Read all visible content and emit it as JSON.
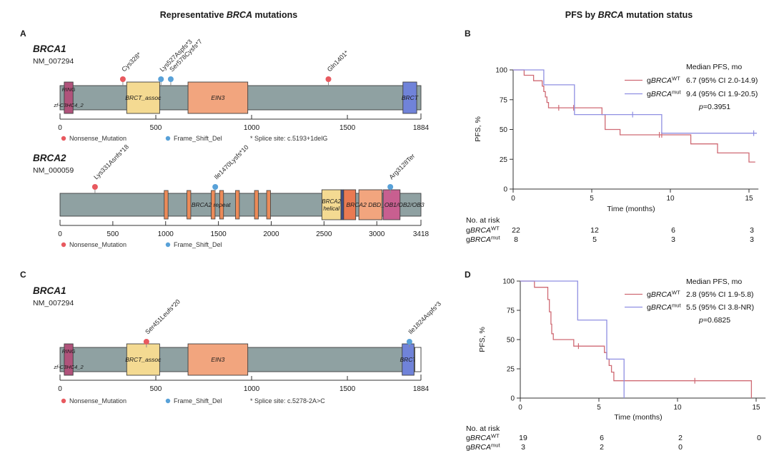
{
  "left_title": {
    "pre": "Representative ",
    "gene": "BRCA",
    "post": " mutations"
  },
  "right_title": {
    "pre": "PFS by ",
    "gene": "BRCA",
    "post": " mutation status"
  },
  "colors": {
    "nonsense": "#e8595f",
    "frameshift": "#58a1d8",
    "bar": "#8fa1a2",
    "bar_border": "#3f3f3f",
    "km_wt": "#cf6a74",
    "km_mut": "#8f8fe2",
    "domain_ring": "#b0537b",
    "domain_yellow": "#f4da92",
    "domain_salmon": "#f2a57e",
    "domain_blue": "#7083d9",
    "domain_repeat": "#ec8b59",
    "domain_navy": "#3d4f8a",
    "domain_coral": "#e97a52",
    "domain_pink": "#c85f90"
  },
  "chart_data": [
    {
      "panel": "A",
      "type": "lollipop",
      "tracks": [
        {
          "gene": "BRCA1",
          "transcript": "NM_007294",
          "axis_max": 1884,
          "axis_ticks": [
            0,
            500,
            1000,
            1500,
            1884
          ],
          "mutations": [
            {
              "label": "Cys328*",
              "pos": 328,
              "type": "nonsense"
            },
            {
              "label": "Lys527Aspfs*3",
              "pos": 527,
              "type": "frameshift"
            },
            {
              "label": "Ser578Cysfs*7",
              "pos": 578,
              "type": "frameshift"
            },
            {
              "label": "Gln1401*",
              "pos": 1401,
              "type": "nonsense"
            }
          ],
          "domains": [
            {
              "label": "RING",
              "label2": "zf-C3HC4_2",
              "start": 22,
              "end": 68,
              "color": "#b0537b"
            },
            {
              "label": "BRCT_assoc",
              "start": 348,
              "end": 520,
              "color": "#f4da92"
            },
            {
              "label": "EIN3",
              "start": 668,
              "end": 980,
              "color": "#f2a57e"
            },
            {
              "label": "BRCT",
              "start": 1790,
              "end": 1862,
              "color": "#7083d9"
            }
          ],
          "legend": [
            {
              "label": "Nonsense_Mutation",
              "type": "nonsense"
            },
            {
              "label": "Frame_Shift_Del",
              "type": "frameshift"
            }
          ],
          "note": "* Splice site: c.5193+1delG"
        },
        {
          "gene": "BRCA2",
          "transcript": "NM_000059",
          "axis_max": 3418,
          "axis_ticks": [
            0,
            500,
            1000,
            1500,
            2000,
            2500,
            3000,
            3418
          ],
          "mutations": [
            {
              "label": "Lys331Asnfs*18",
              "pos": 331,
              "type": "nonsense"
            },
            {
              "label": "Ile1470Lysfs*10",
              "pos": 1470,
              "type": "frameshift"
            },
            {
              "label": "Arg3128Ter",
              "pos": 3128,
              "type": "frameshift"
            }
          ],
          "repeats": [
            1005,
            1220,
            1450,
            1530,
            1680,
            1860,
            1975
          ],
          "repeat_label": "BRCA2 repeat",
          "repeat_label_pos": 1430,
          "span_label": "BRCA2 DBD_OB1/OB2/OB3",
          "span_label_pos": 3080,
          "domains": [
            {
              "label": "BRCA2\nhelical",
              "start": 2480,
              "end": 2660,
              "color": "#f4da92"
            },
            {
              "label": "",
              "start": 2660,
              "end": 2686,
              "color": "#3d4f8a"
            },
            {
              "label": "",
              "start": 2686,
              "end": 2800,
              "color": "#e97a52"
            },
            {
              "label": "",
              "start": 2830,
              "end": 3050,
              "color": "#f2a57e"
            },
            {
              "label": "",
              "start": 3060,
              "end": 3220,
              "color": "#c85f90"
            }
          ],
          "legend": [
            {
              "label": "Nonsense_Mutation",
              "type": "nonsense"
            },
            {
              "label": "Frame_Shift_Del",
              "type": "frameshift"
            }
          ]
        }
      ]
    },
    {
      "panel": "B",
      "type": "km_curve",
      "ylabel": "PFS, %",
      "xlabel": "Time (months)",
      "yticks": [
        0,
        25,
        50,
        75,
        100
      ],
      "xticks": [
        0,
        5,
        10,
        15
      ],
      "legend_title": "Median PFS, mo",
      "p_value": "p=0.3951",
      "series": [
        {
          "prefix": "g",
          "gene": "BRCA",
          "sup": "WT",
          "median": "6.7 (95% CI 2.0-14.9)",
          "color": "#cf6a74",
          "points": [
            [
              0,
              100
            ],
            [
              0.7,
              100
            ],
            [
              0.7,
              95.5
            ],
            [
              1.3,
              95.5
            ],
            [
              1.3,
              90.9
            ],
            [
              1.85,
              90.9
            ],
            [
              1.85,
              86.4
            ],
            [
              1.95,
              86.4
            ],
            [
              1.95,
              81.8
            ],
            [
              2.05,
              81.8
            ],
            [
              2.05,
              77.3
            ],
            [
              2.15,
              77.3
            ],
            [
              2.15,
              72.7
            ],
            [
              2.25,
              72.7
            ],
            [
              2.25,
              68.2
            ],
            [
              5.65,
              68.2
            ],
            [
              5.65,
              62.5
            ],
            [
              5.85,
              62.5
            ],
            [
              5.85,
              50
            ],
            [
              6.8,
              50
            ],
            [
              6.8,
              45.5
            ],
            [
              11.3,
              45.5
            ],
            [
              11.3,
              37.9
            ],
            [
              13,
              37.9
            ],
            [
              13,
              30.3
            ],
            [
              15,
              30.3
            ],
            [
              15,
              22.7
            ],
            [
              15.4,
              22.7
            ]
          ],
          "censors": [
            [
              2.9,
              68.2
            ],
            [
              3.85,
              68.2
            ],
            [
              9.3,
              45.5
            ],
            [
              9.45,
              45.5
            ]
          ]
        },
        {
          "prefix": "g",
          "gene": "BRCA",
          "sup": "mut",
          "median": "9.4 (95% CI 1.9-20.5)",
          "color": "#8f8fe2",
          "points": [
            [
              0,
              100
            ],
            [
              1.95,
              100
            ],
            [
              1.95,
              87.5
            ],
            [
              3.9,
              87.5
            ],
            [
              3.9,
              62.5
            ],
            [
              9.45,
              62.5
            ],
            [
              9.45,
              46.9
            ],
            [
              15.5,
              46.9
            ]
          ],
          "censors": [
            [
              7.6,
              62.5
            ],
            [
              15.3,
              46.9
            ]
          ]
        }
      ],
      "risk_table": {
        "title": "No. at risk",
        "rows": [
          {
            "prefix": "g",
            "gene": "BRCA",
            "sup": "WT",
            "counts": [
              "22",
              "12",
              "6",
              "3"
            ]
          },
          {
            "prefix": "g",
            "gene": "BRCA",
            "sup": "mut",
            "counts": [
              "8",
              "5",
              "3",
              "3"
            ]
          }
        ]
      }
    },
    {
      "panel": "C",
      "type": "lollipop",
      "tracks": [
        {
          "gene": "BRCA1",
          "transcript": "NM_007294",
          "axis_max": 1884,
          "axis_ticks": [
            0,
            500,
            1000,
            1500,
            1884
          ],
          "mutations": [
            {
              "label": "Ser451Leufs*20",
              "pos": 451,
              "type": "nonsense"
            },
            {
              "label": "Ile1824Aspfs*3",
              "pos": 1824,
              "type": "frameshift"
            }
          ],
          "domains": [
            {
              "label": "RING",
              "label2": "zf-C3HC4_2",
              "start": 22,
              "end": 68,
              "color": "#b0537b"
            },
            {
              "label": "BRCT_assoc",
              "start": 348,
              "end": 520,
              "color": "#f4da92"
            },
            {
              "label": "EIN3",
              "start": 668,
              "end": 980,
              "color": "#f2a57e"
            },
            {
              "label": "BRCT",
              "start": 1786,
              "end": 1848,
              "color": "#7083d9"
            }
          ],
          "end_cap": {
            "start": 1852,
            "end": 1884
          },
          "legend": [
            {
              "label": "Nonsense_Mutation",
              "type": "nonsense"
            },
            {
              "label": "Frame_Shift_Del",
              "type": "frameshift"
            }
          ],
          "note": "* Splice site: c.5278-2A>C"
        }
      ]
    },
    {
      "panel": "D",
      "type": "km_curve",
      "ylabel": "PFS, %",
      "xlabel": "Time (months)",
      "yticks": [
        0,
        25,
        50,
        75,
        100
      ],
      "xticks": [
        0,
        5,
        10,
        15
      ],
      "legend_title": "Median PFS, mo",
      "p_value": "p=0.6825",
      "series": [
        {
          "prefix": "g",
          "gene": "BRCA",
          "sup": "WT",
          "median": "2.8 (95% CI 1.9-5.8)",
          "color": "#cf6a74",
          "points": [
            [
              0,
              100
            ],
            [
              0.9,
              100
            ],
            [
              0.9,
              94.7
            ],
            [
              1.75,
              94.7
            ],
            [
              1.75,
              84.2
            ],
            [
              1.85,
              84.2
            ],
            [
              1.85,
              73.7
            ],
            [
              1.95,
              73.7
            ],
            [
              1.95,
              63.2
            ],
            [
              2,
              63.2
            ],
            [
              2,
              55
            ],
            [
              2.1,
              55
            ],
            [
              2.1,
              50
            ],
            [
              3.4,
              50
            ],
            [
              3.4,
              44.4
            ],
            [
              5.35,
              44.4
            ],
            [
              5.35,
              38.9
            ],
            [
              5.5,
              38.9
            ],
            [
              5.5,
              33.3
            ],
            [
              5.65,
              33.3
            ],
            [
              5.65,
              27.8
            ],
            [
              5.8,
              27.8
            ],
            [
              5.8,
              22.2
            ],
            [
              5.95,
              22.2
            ],
            [
              5.95,
              14.8
            ],
            [
              14.7,
              14.8
            ],
            [
              14.7,
              0
            ]
          ],
          "censors": [
            [
              3.7,
              44.4
            ],
            [
              11.1,
              14.8
            ]
          ]
        },
        {
          "prefix": "g",
          "gene": "BRCA",
          "sup": "mut",
          "median": "5.5 (95% CI 3.8-NR)",
          "color": "#8f8fe2",
          "points": [
            [
              0,
              100
            ],
            [
              3.65,
              100
            ],
            [
              3.65,
              66.7
            ],
            [
              5.5,
              66.7
            ],
            [
              5.5,
              33.3
            ],
            [
              6.6,
              33.3
            ],
            [
              6.6,
              0
            ]
          ],
          "censors": []
        }
      ],
      "risk_table": {
        "title": "No. at risk",
        "rows": [
          {
            "prefix": "g",
            "gene": "BRCA",
            "sup": "WT",
            "counts": [
              "19",
              "6",
              "2",
              "0"
            ]
          },
          {
            "prefix": "g",
            "gene": "BRCA",
            "sup": "mut",
            "counts": [
              "3",
              "2",
              "0"
            ]
          }
        ]
      }
    }
  ]
}
